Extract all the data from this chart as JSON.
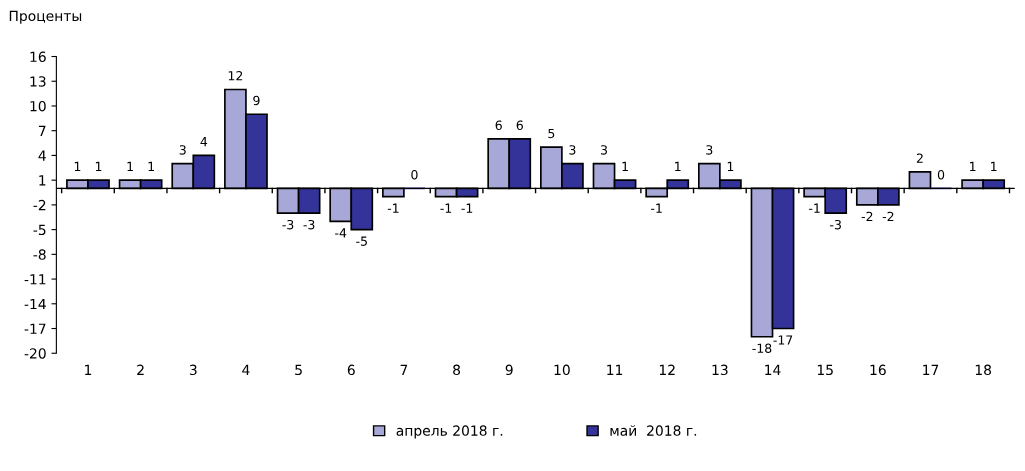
{
  "chart_data": {
    "type": "bar",
    "ylabel": "Проценты",
    "categories": [
      "1",
      "2",
      "3",
      "4",
      "5",
      "6",
      "7",
      "8",
      "9",
      "10",
      "11",
      "12",
      "13",
      "14",
      "15",
      "16",
      "17",
      "18"
    ],
    "series": [
      {
        "name": "апрель 2018 г.",
        "color": "#a8a8d8",
        "values": [
          1,
          1,
          3,
          12,
          -3,
          -4,
          -1,
          -1,
          6,
          5,
          3,
          -1,
          3,
          -18,
          -1,
          -2,
          2,
          1
        ]
      },
      {
        "name": "май  2018 г.",
        "color": "#333399",
        "values": [
          1,
          1,
          4,
          9,
          -3,
          -5,
          0,
          -1,
          6,
          3,
          1,
          1,
          1,
          -17,
          -3,
          -2,
          0,
          1
        ]
      }
    ],
    "ylim": [
      -20,
      16
    ],
    "yticks": [
      -20,
      -17,
      -14,
      -11,
      -8,
      -5,
      -2,
      1,
      4,
      7,
      10,
      13,
      16
    ],
    "data_labels": true,
    "grid": false,
    "legend": "bottom"
  }
}
